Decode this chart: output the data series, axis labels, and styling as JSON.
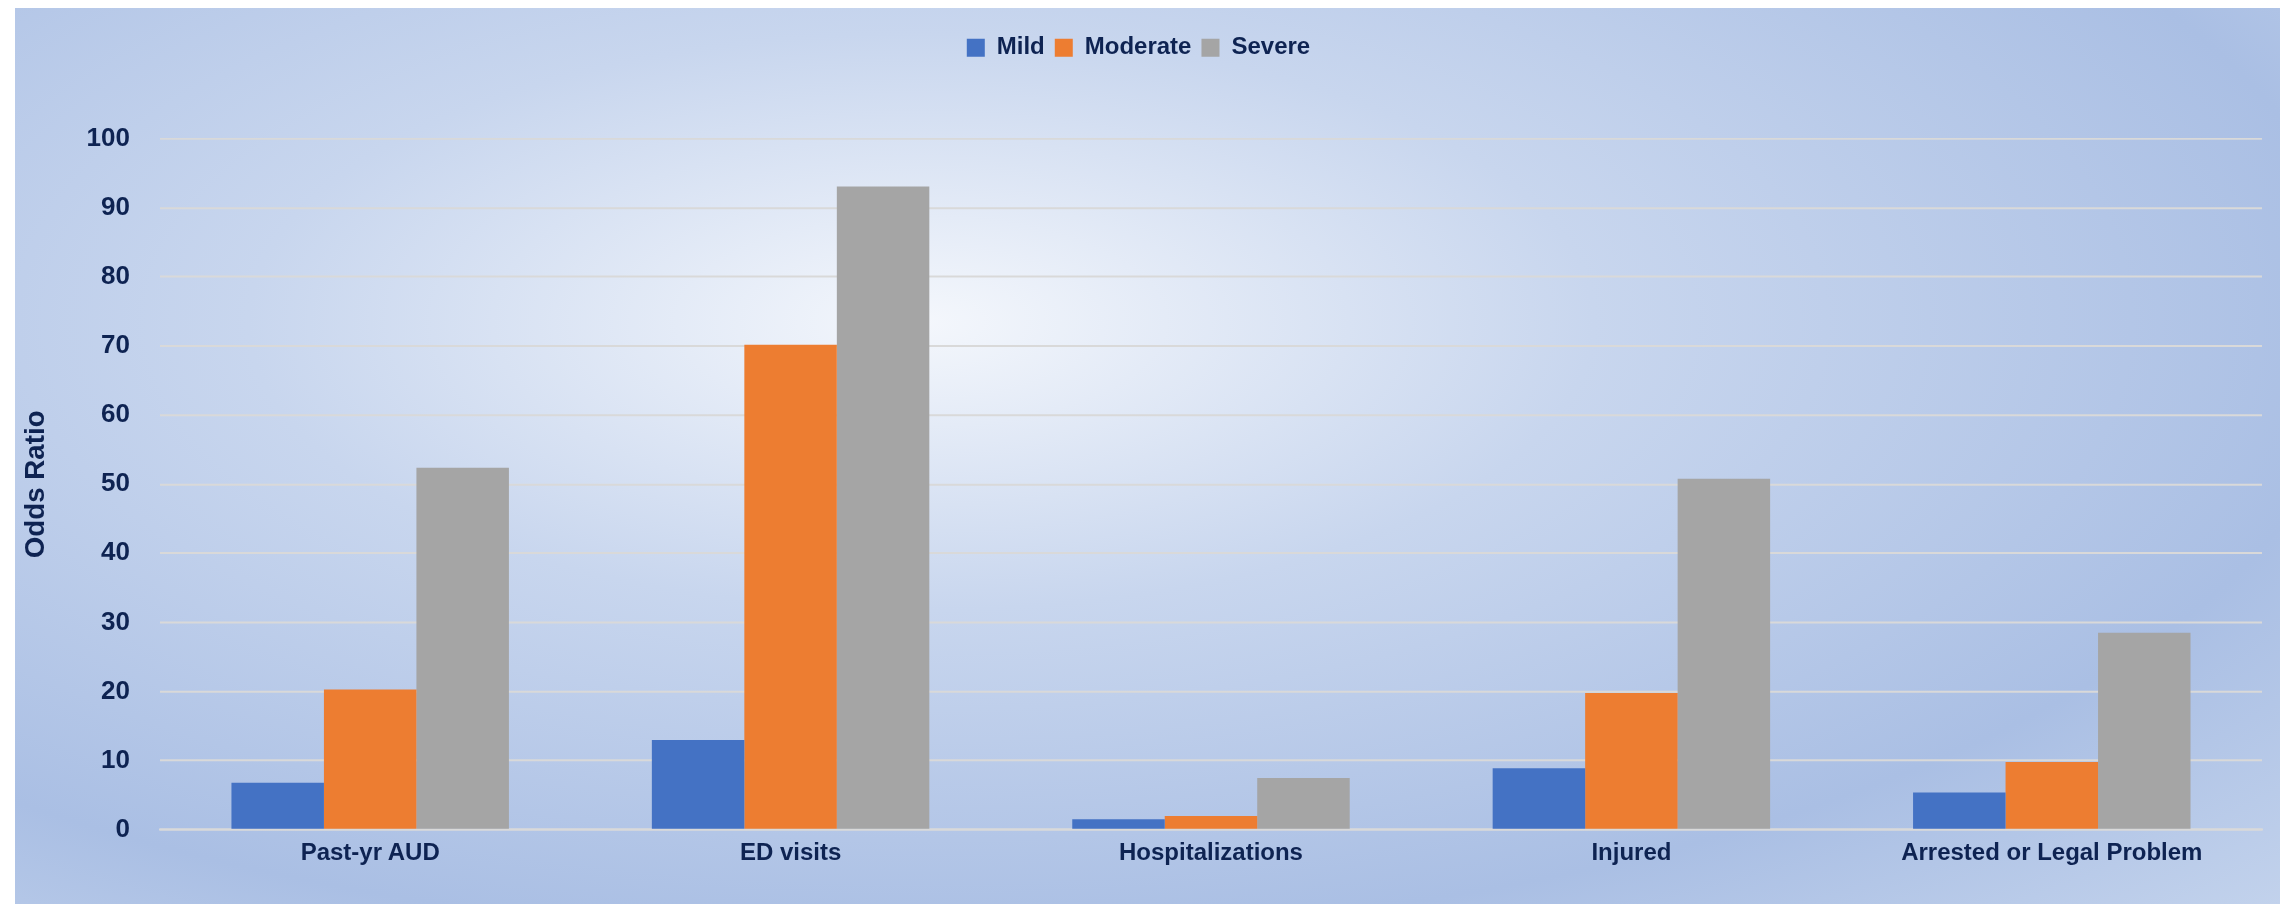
{
  "chart_data": {
    "type": "bar",
    "ylabel": "Odds Ratio",
    "categories": [
      "Past-yr AUD",
      "ED visits",
      "Hospitalizations",
      "Injured",
      "Arrested or Legal Problem"
    ],
    "series": [
      {
        "name": "Mild",
        "color": "#4472c4",
        "values": [
          6.8,
          13.0,
          1.5,
          8.9,
          5.4
        ]
      },
      {
        "name": "Moderate",
        "color": "#ed7d31",
        "values": [
          20.3,
          70.2,
          2.0,
          19.8,
          9.8
        ]
      },
      {
        "name": "Severe",
        "color": "#a5a5a5",
        "values": [
          52.4,
          93.1,
          7.5,
          50.8,
          28.5
        ]
      }
    ],
    "ylim": [
      0,
      100
    ],
    "yticks": [
      0,
      10,
      20,
      30,
      40,
      50,
      60,
      70,
      80,
      90,
      100
    ],
    "grid": "y",
    "legend": "top"
  }
}
